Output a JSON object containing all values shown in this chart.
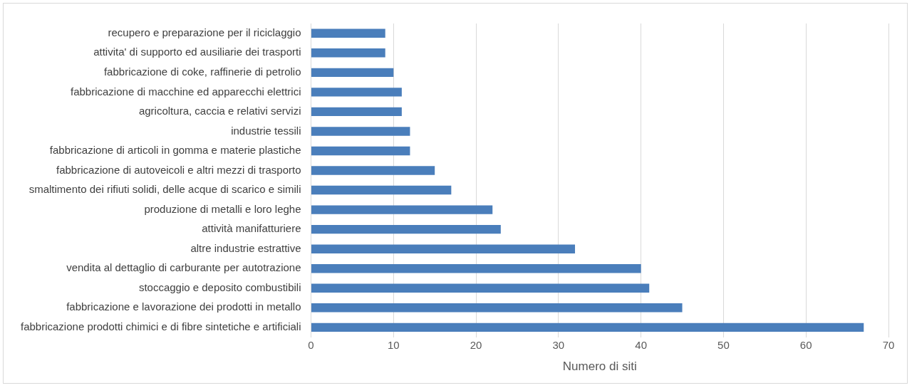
{
  "chart_data": {
    "type": "bar",
    "orientation": "horizontal",
    "xlabel": "Numero di siti",
    "categories": [
      "recupero e preparazione per il riciclaggio",
      "attivita' di supporto ed ausiliarie dei trasporti",
      "fabbricazione di coke, raffinerie di petrolio",
      "fabbricazione di macchine ed apparecchi elettrici",
      "agricoltura, caccia e relativi servizi",
      "industrie tessili",
      "fabbricazione di articoli in gomma e materie plastiche",
      "fabbricazione di autoveicoli e altri mezzi di trasporto",
      "smaltimento dei rifiuti solidi, delle acque di scarico e simili",
      "produzione di metalli e loro leghe",
      "attività manifatturiere",
      "altre industrie estrattive",
      "vendita al dettaglio di carburante per autotrazione",
      "stoccaggio e deposito combustibili",
      "fabbricazione e lavorazione dei prodotti in metallo",
      "fabbricazione prodotti chimici e di fibre sintetiche e artificiali"
    ],
    "values": [
      9,
      9,
      10,
      11,
      11,
      12,
      12,
      15,
      17,
      22,
      23,
      32,
      40,
      41,
      45,
      67
    ],
    "color": "#4a7ebb",
    "xlim": [
      0,
      70
    ],
    "xticks": [
      0,
      10,
      20,
      30,
      40,
      50,
      60,
      70
    ],
    "grid": "x",
    "legend": false
  }
}
